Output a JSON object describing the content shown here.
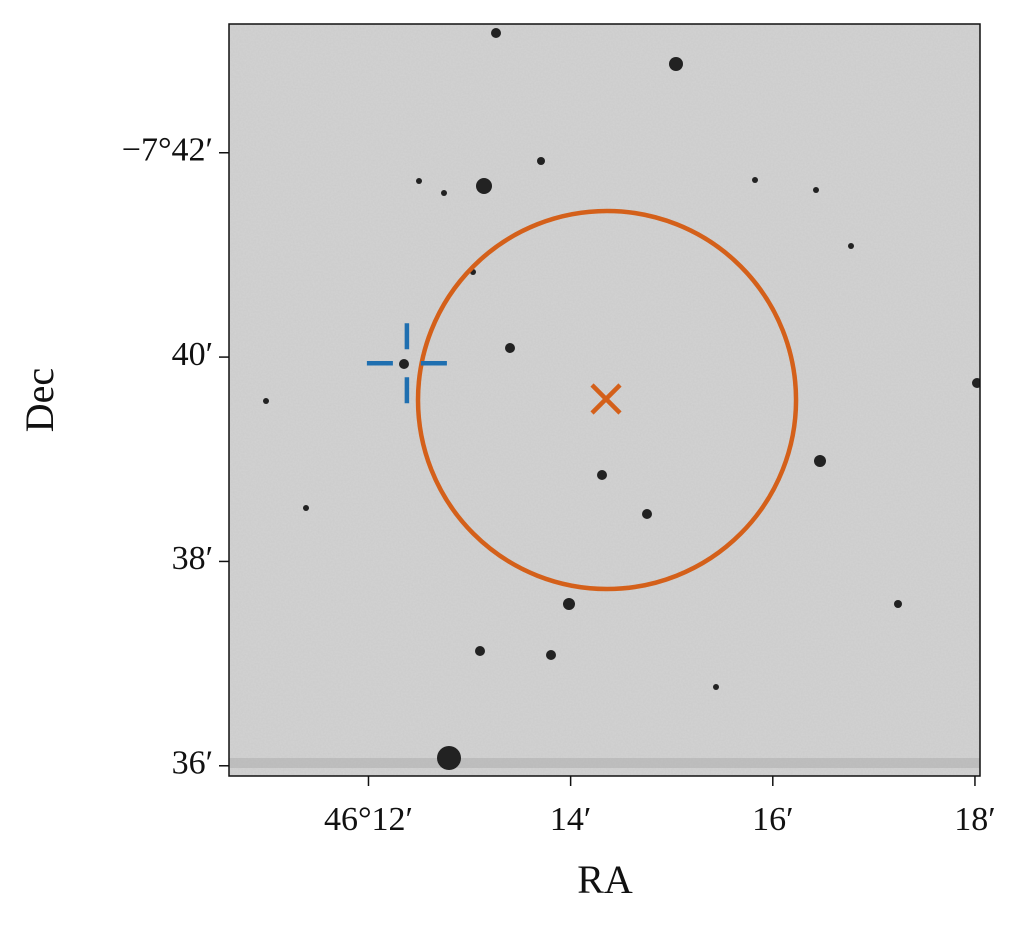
{
  "chart_data": {
    "type": "image",
    "xlabel": "RA",
    "ylabel": "Dec",
    "xlim": [
      10.62,
      18.05
    ],
    "ylim": [
      35.9,
      43.26
    ],
    "xticks": [
      {
        "value": 12,
        "label": "46°12′"
      },
      {
        "value": 14,
        "label": "14′"
      },
      {
        "value": 16,
        "label": "16′"
      },
      {
        "value": 18,
        "label": "18′"
      }
    ],
    "yticks": [
      {
        "value": 42,
        "label": "−7°42′"
      },
      {
        "value": 40,
        "label": "40′"
      },
      {
        "value": 38,
        "label": "38′"
      },
      {
        "value": 36,
        "label": "36′"
      }
    ],
    "markers": [
      {
        "shape": "plus",
        "x": 12.38,
        "y": 39.94,
        "color": "#1f6fb0"
      },
      {
        "shape": "x",
        "x": 14.35,
        "y": 39.59,
        "color": "#d4601a"
      }
    ],
    "circle": {
      "x": 14.36,
      "y": 39.58,
      "radius": 1.87,
      "color": "#d4601a"
    }
  }
}
